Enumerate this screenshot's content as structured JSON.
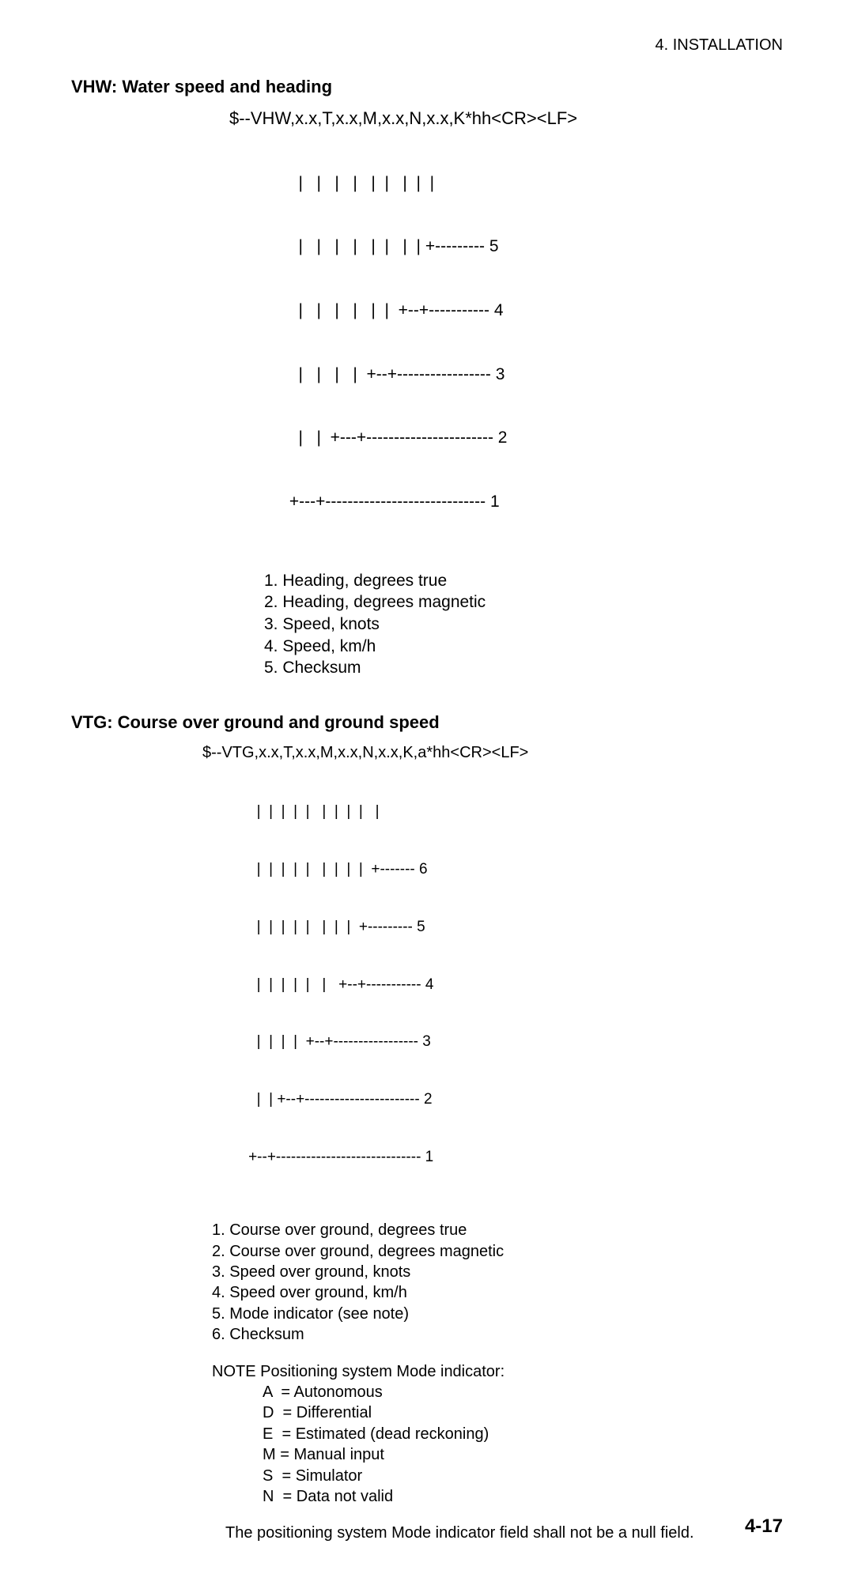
{
  "header": {
    "section_label": "4. INSTALLATION"
  },
  "vhw": {
    "heading": "VHW: Water speed and heading",
    "sentence": "$--VHW,x.x,T,x.x,M,x.x,N,x.x,K*hh<CR><LF>",
    "diagram_lines": [
      "               |   |   |   |   |  |   |  |  |",
      "               |   |   |   |   |  |   |  | +--------- 5",
      "               |   |   |   |   |  |  +--+----------- 4",
      "               |   |   |   |  +--+----------------- 3",
      "               |   |  +---+----------------------- 2",
      "             +---+----------------------------- 1"
    ],
    "legend": [
      "1. Heading, degrees true",
      "2. Heading, degrees magnetic",
      "3. Speed, knots",
      "4. Speed, km/h",
      "5. Checksum"
    ]
  },
  "vtg": {
    "heading": "VTG: Course over ground and ground speed",
    "sentence": "$--VTG,x.x,T,x.x,M,x.x,N,x.x,K,a*hh<CR><LF>",
    "diagram_lines": [
      "             |  |  |  |  |   |  |  |  |   |",
      "             |  |  |  |  |   |  |  |  |  +------- 6",
      "             |  |  |  |  |   |  |  |  +--------- 5",
      "             |  |  |  |  |   |   +--+----------- 4",
      "             |  |  |  |  +--+----------------- 3",
      "             |  | +--+----------------------- 2",
      "           +--+----------------------------- 1"
    ],
    "legend": [
      "1. Course over ground, degrees true",
      "2. Course over ground, degrees magnetic",
      "3. Speed over ground, knots",
      "4. Speed over ground, km/h",
      "5. Mode indicator (see note)",
      "6. Checksum"
    ],
    "note_intro": "NOTE  Positioning system Mode indicator:",
    "note_items": [
      "A  = Autonomous",
      "D  = Differential",
      "E  = Estimated (dead reckoning)",
      "M = Manual input",
      "S  = Simulator",
      "N  = Data not valid"
    ],
    "final_note": "The positioning system Mode indicator field shall not be a null field."
  },
  "page_number": "4-17",
  "colors": {
    "text": "#000000",
    "background": "#ffffff"
  },
  "typography": {
    "body_fontsize": 20,
    "heading_fontsize": 22,
    "heading_weight": "bold",
    "page_number_fontsize": 24
  }
}
